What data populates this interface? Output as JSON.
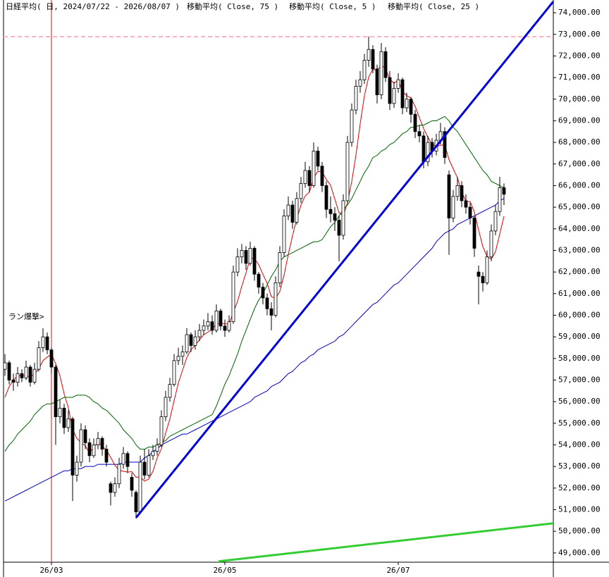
{
  "chart_data": {
    "type": "candlestick",
    "title": "日経平均( 日, 2024/07/22 - 2026/08/07 )",
    "annotation": "ラン爆撃>",
    "up_color": "#ffffff",
    "down_color": "#000000",
    "vline_color": "#ff0000",
    "categories": [
      null,
      null,
      null,
      null,
      null,
      null,
      null,
      null,
      null,
      null,
      null,
      "26/03",
      null,
      null,
      null,
      null,
      null,
      null,
      null,
      null,
      null,
      null,
      null,
      null,
      null,
      null,
      null,
      null,
      null,
      null,
      null,
      null,
      null,
      null,
      null,
      null,
      null,
      null,
      null,
      null,
      null,
      null,
      null,
      null,
      null,
      null,
      null,
      null,
      null,
      null,
      null,
      null,
      "26/05",
      null,
      null,
      null,
      null,
      null,
      null,
      null,
      null,
      null,
      null,
      null,
      null,
      null,
      null,
      null,
      null,
      null,
      null,
      null,
      null,
      null,
      null,
      null,
      null,
      null,
      null,
      null,
      null,
      null,
      null,
      null,
      null,
      null,
      null,
      null,
      null,
      null,
      null,
      null,
      null,
      "26/07",
      null,
      null,
      null,
      null,
      null,
      null,
      null,
      null,
      null,
      null,
      null,
      null,
      null,
      null,
      null,
      null,
      null,
      null,
      null,
      null,
      null,
      null,
      null,
      null,
      null
    ],
    "ohlc": [
      [
        57500,
        58200,
        57200,
        57800
      ],
      [
        57800,
        57900,
        56800,
        57000
      ],
      [
        57000,
        57300,
        56500,
        56900
      ],
      [
        56900,
        57600,
        56700,
        57300
      ],
      [
        57300,
        57500,
        56900,
        57100
      ],
      [
        57100,
        57900,
        57000,
        57600
      ],
      [
        57600,
        57700,
        56700,
        56900
      ],
      [
        56900,
        57800,
        56800,
        57500
      ],
      [
        57500,
        58800,
        57400,
        58500
      ],
      [
        58500,
        59400,
        58300,
        59000
      ],
      [
        59000,
        59200,
        58200,
        58400
      ],
      [
        58400,
        58500,
        57300,
        57600
      ],
      [
        57600,
        57700,
        54000,
        55300
      ],
      [
        55300,
        56100,
        55000,
        55700
      ],
      [
        55700,
        55900,
        54500,
        54800
      ],
      [
        54800,
        55600,
        54600,
        55200
      ],
      [
        55200,
        55300,
        51400,
        52600
      ],
      [
        52600,
        53500,
        52300,
        53200
      ],
      [
        53200,
        55000,
        53000,
        54700
      ],
      [
        54700,
        54900,
        53800,
        54100
      ],
      [
        54100,
        54300,
        53200,
        53500
      ],
      [
        53500,
        54300,
        53400,
        54000
      ],
      [
        54000,
        54600,
        53800,
        54300
      ],
      [
        54300,
        54400,
        53500,
        53800
      ],
      [
        53800,
        54000,
        53000,
        53200
      ],
      [
        52200,
        52300,
        51200,
        51800
      ],
      [
        51800,
        52500,
        51600,
        52200
      ],
      [
        52200,
        53400,
        52000,
        53100
      ],
      [
        53100,
        53900,
        52900,
        53600
      ],
      [
        53600,
        53700,
        52700,
        53000
      ],
      [
        52500,
        52700,
        51600,
        51900
      ],
      [
        51800,
        51900,
        50600,
        50900
      ],
      [
        50900,
        53500,
        50800,
        53200
      ],
      [
        53200,
        53800,
        52400,
        52600
      ],
      [
        52600,
        53800,
        52500,
        53500
      ],
      [
        53500,
        54000,
        53300,
        53700
      ],
      [
        53700,
        54300,
        53500,
        54000
      ],
      [
        54000,
        55600,
        53900,
        55300
      ],
      [
        55300,
        56500,
        55100,
        56200
      ],
      [
        56200,
        57100,
        56000,
        56800
      ],
      [
        56800,
        58200,
        56700,
        57900
      ],
      [
        57900,
        58500,
        57700,
        58100
      ],
      [
        58100,
        58600,
        57700,
        58300
      ],
      [
        58300,
        59400,
        58200,
        59100
      ],
      [
        59100,
        59200,
        58300,
        58600
      ],
      [
        58600,
        59300,
        58400,
        59000
      ],
      [
        59000,
        59600,
        58800,
        59300
      ],
      [
        59300,
        59800,
        59100,
        59500
      ],
      [
        59500,
        60100,
        59300,
        59700
      ],
      [
        59700,
        60000,
        59100,
        59300
      ],
      [
        59300,
        60500,
        59200,
        60200
      ],
      [
        60200,
        60300,
        59300,
        59500
      ],
      [
        59500,
        59800,
        59000,
        59300
      ],
      [
        59300,
        60000,
        59200,
        59700
      ],
      [
        59700,
        62300,
        59600,
        62000
      ],
      [
        62000,
        63100,
        61800,
        62700
      ],
      [
        62700,
        63300,
        62400,
        63000
      ],
      [
        63000,
        63200,
        62100,
        62400
      ],
      [
        62400,
        63400,
        62300,
        63100
      ],
      [
        63100,
        63200,
        61600,
        61900
      ],
      [
        61900,
        62000,
        61000,
        61300
      ],
      [
        61300,
        61500,
        60500,
        60800
      ],
      [
        60800,
        61000,
        60000,
        60300
      ],
      [
        60300,
        60600,
        59300,
        60000
      ],
      [
        60000,
        61800,
        59900,
        61500
      ],
      [
        61500,
        63200,
        61300,
        62900
      ],
      [
        62900,
        64900,
        62700,
        64600
      ],
      [
        64600,
        65500,
        64400,
        65100
      ],
      [
        65100,
        65300,
        64000,
        64300
      ],
      [
        64300,
        65700,
        64200,
        65400
      ],
      [
        65400,
        66400,
        65200,
        66100
      ],
      [
        66100,
        67100,
        65900,
        66700
      ],
      [
        66700,
        66900,
        65700,
        66000
      ],
      [
        66000,
        68000,
        65900,
        67600
      ],
      [
        67600,
        67800,
        66700,
        66900
      ],
      [
        66900,
        67100,
        65700,
        66000
      ],
      [
        66000,
        66200,
        64500,
        64900
      ],
      [
        64900,
        65500,
        64300,
        64700
      ],
      [
        64700,
        65000,
        63900,
        64400
      ],
      [
        64400,
        64600,
        62500,
        63700
      ],
      [
        63700,
        65600,
        63500,
        65300
      ],
      [
        65300,
        68300,
        65200,
        68000
      ],
      [
        68000,
        69800,
        67800,
        69500
      ],
      [
        69500,
        70900,
        69300,
        70600
      ],
      [
        70600,
        71300,
        70300,
        70900
      ],
      [
        70900,
        72100,
        70700,
        71800
      ],
      [
        71800,
        72900,
        71500,
        72300
      ],
      [
        72300,
        72500,
        71200,
        71400
      ],
      [
        71400,
        71600,
        69800,
        70200
      ],
      [
        70200,
        72600,
        70000,
        72200
      ],
      [
        72200,
        72400,
        70800,
        71000
      ],
      [
        71000,
        71300,
        69500,
        69800
      ],
      [
        69800,
        70800,
        69600,
        70500
      ],
      [
        70500,
        71200,
        70300,
        70900
      ],
      [
        70900,
        71000,
        69300,
        69600
      ],
      [
        69600,
        70300,
        69400,
        70000
      ],
      [
        70000,
        70100,
        68900,
        69300
      ],
      [
        69300,
        69500,
        68200,
        68500
      ],
      [
        68500,
        68800,
        68000,
        68300
      ],
      [
        68300,
        68500,
        66800,
        67100
      ],
      [
        67100,
        68300,
        66900,
        68000
      ],
      [
        68000,
        68200,
        67300,
        67600
      ],
      [
        67600,
        68400,
        67400,
        68100
      ],
      [
        68100,
        68900,
        67900,
        68500
      ],
      [
        68500,
        68700,
        67000,
        67300
      ],
      [
        66500,
        66700,
        62800,
        64500
      ],
      [
        64500,
        65800,
        64300,
        65500
      ],
      [
        65500,
        66400,
        65300,
        66000
      ],
      [
        66000,
        66200,
        65000,
        65300
      ],
      [
        65300,
        65600,
        64700,
        65000
      ],
      [
        65000,
        65200,
        64200,
        64500
      ],
      [
        64500,
        64600,
        62700,
        63100
      ],
      [
        62000,
        62300,
        60500,
        61800
      ],
      [
        61800,
        62000,
        61100,
        61500
      ],
      [
        61500,
        63000,
        61400,
        62700
      ],
      [
        62700,
        64200,
        62500,
        63900
      ],
      [
        63900,
        65100,
        63700,
        64800
      ],
      [
        64800,
        66400,
        64600,
        65900
      ],
      [
        65900,
        66100,
        65100,
        65600
      ]
    ],
    "series": [
      {
        "name": "移動平均( Close, 75 )",
        "color": "#0000c8",
        "values": [
          51400,
          51500,
          51600,
          51700,
          51800,
          51900,
          52000,
          52100,
          52200,
          52300,
          52400,
          52500,
          52600,
          52700,
          52800,
          52800,
          52900,
          52900,
          52900,
          53000,
          53000,
          53000,
          53100,
          53100,
          53100,
          53100,
          53100,
          53100,
          53200,
          53200,
          53200,
          53200,
          53200,
          53400,
          53500,
          53700,
          53800,
          54000,
          54100,
          54200,
          54300,
          54400,
          54500,
          54500,
          54600,
          54700,
          54800,
          54900,
          55000,
          55100,
          55200,
          55300,
          55400,
          55500,
          55600,
          55700,
          55800,
          55900,
          56000,
          56200,
          56300,
          56400,
          56500,
          56700,
          56800,
          56900,
          57100,
          57300,
          57400,
          57600,
          57800,
          57900,
          58100,
          58200,
          58400,
          58500,
          58600,
          58700,
          58800,
          59000,
          59100,
          59300,
          59500,
          59700,
          59900,
          60100,
          60300,
          60500,
          60600,
          60800,
          61000,
          61200,
          61400,
          61500,
          61700,
          61900,
          62100,
          62300,
          62500,
          62700,
          62900,
          63100,
          63400,
          63600,
          63800,
          63900,
          64000,
          64200,
          64300,
          64400,
          64500,
          64600,
          64700,
          64800,
          64900,
          65000,
          65100,
          65300,
          65400
        ]
      },
      {
        "name": "移動平均( Close, 5 )",
        "color": "#e00000",
        "values": [
          56200,
          56700,
          57000,
          57200,
          57220,
          57180,
          57160,
          57280,
          57520,
          57900,
          58060,
          58200,
          57760,
          57200,
          56360,
          55720,
          54720,
          54300,
          54100,
          53960,
          53620,
          53900,
          54120,
          53940,
          53760,
          53420,
          53060,
          52820,
          52780,
          52740,
          52760,
          52500,
          52520,
          52320,
          52420,
          52780,
          53400,
          53820,
          54540,
          55200,
          56040,
          56860,
          57460,
          58040,
          58400,
          58620,
          58860,
          59100,
          59220,
          59360,
          59600,
          59640,
          59600,
          59600,
          60140,
          60640,
          61340,
          61960,
          62640,
          62620,
          62340,
          61900,
          61480,
          60860,
          60780,
          61100,
          61860,
          62820,
          63680,
          64460,
          65100,
          65520,
          65700,
          66360,
          66660,
          66640,
          66280,
          66020,
          65380,
          64740,
          64600,
          65220,
          66180,
          67420,
          68860,
          70160,
          71020,
          71400,
          71320,
          71580,
          71420,
          70920,
          70740,
          70880,
          70360,
          70160,
          70060,
          69660,
          69140,
          68640,
          68240,
          67900,
          67820,
          67860,
          67900,
          67200,
          66780,
          66360,
          65720,
          65260,
          65260,
          64780,
          63940,
          63180,
          62720,
          62600,
          62940,
          63760,
          64580
        ]
      },
      {
        "name": "移動平均( Close, 25 )",
        "color": "#006400",
        "values": [
          53700,
          54000,
          54200,
          54500,
          54700,
          54900,
          55100,
          55400,
          55600,
          55800,
          55900,
          55900,
          56000,
          56100,
          56200,
          56200,
          56200,
          56300,
          56300,
          56300,
          56200,
          56000,
          55900,
          55700,
          55600,
          55400,
          55200,
          55000,
          54700,
          54500,
          54300,
          54000,
          53800,
          53800,
          53900,
          53900,
          54000,
          54100,
          54200,
          54400,
          54500,
          54600,
          54700,
          54800,
          54900,
          55000,
          55100,
          55200,
          55300,
          55400,
          55800,
          56300,
          56800,
          57200,
          57700,
          58200,
          58800,
          59300,
          59800,
          60300,
          60700,
          61000,
          61400,
          61800,
          62100,
          62500,
          62700,
          62800,
          62900,
          63000,
          63100,
          63200,
          63300,
          63400,
          63400,
          63500,
          63800,
          64100,
          64300,
          64600,
          64900,
          65100,
          65400,
          65800,
          66200,
          66600,
          66900,
          67300,
          67400,
          67600,
          67700,
          67900,
          68000,
          68200,
          68400,
          68500,
          68700,
          68700,
          68800,
          68800,
          68900,
          69000,
          69000,
          69100,
          69200,
          69000,
          68700,
          68500,
          68200,
          67900,
          67600,
          67300,
          67000,
          66700,
          66500,
          66200,
          66100,
          66000,
          65900
        ]
      }
    ],
    "lines": [
      {
        "color": "#0000dd",
        "values": [
          50630,
          74520
        ]
      },
      {
        "color": "#33cc33",
        "values": [
          48610,
          50370
        ]
      }
    ],
    "hline": {
      "color": "#ffb0c0",
      "value": 72890
    },
    "ylim": [
      48570,
      74590
    ],
    "yticks": [
      {
        "value": 49000,
        "label": "49,000.00"
      },
      {
        "value": 50000,
        "label": "50,000.00"
      },
      {
        "value": 51000,
        "label": "51,000.00"
      },
      {
        "value": 52000,
        "label": "52,000.00"
      },
      {
        "value": 53000,
        "label": "53,000.00"
      },
      {
        "value": 54000,
        "label": "54,000.00"
      },
      {
        "value": 55000,
        "label": "55,000.00"
      },
      {
        "value": 56000,
        "label": "56,000.00"
      },
      {
        "value": 57000,
        "label": "57,000.00"
      },
      {
        "value": 58000,
        "label": "58,000.00"
      },
      {
        "value": 59000,
        "label": "59,000.00"
      },
      {
        "value": 60000,
        "label": "60,000.00"
      },
      {
        "value": 61000,
        "label": "61,000.00"
      },
      {
        "value": 62000,
        "label": "62,000.00"
      },
      {
        "value": 63000,
        "label": "63,000.00"
      },
      {
        "value": 64000,
        "label": "64,000.00"
      },
      {
        "value": 65000,
        "label": "65,000.00"
      },
      {
        "value": 66000,
        "label": "66,000.00"
      },
      {
        "value": 67000,
        "label": "67,000.00"
      },
      {
        "value": 68000,
        "label": "68,000.00"
      },
      {
        "value": 69000,
        "label": "69,000.00"
      },
      {
        "value": 70000,
        "label": "70,000.00"
      },
      {
        "value": 71000,
        "label": "71,000.00"
      },
      {
        "value": 72000,
        "label": "72,000.00"
      },
      {
        "value": 73000,
        "label": "73,000.00"
      },
      {
        "value": 74000,
        "label": "74,000.00"
      }
    ]
  }
}
